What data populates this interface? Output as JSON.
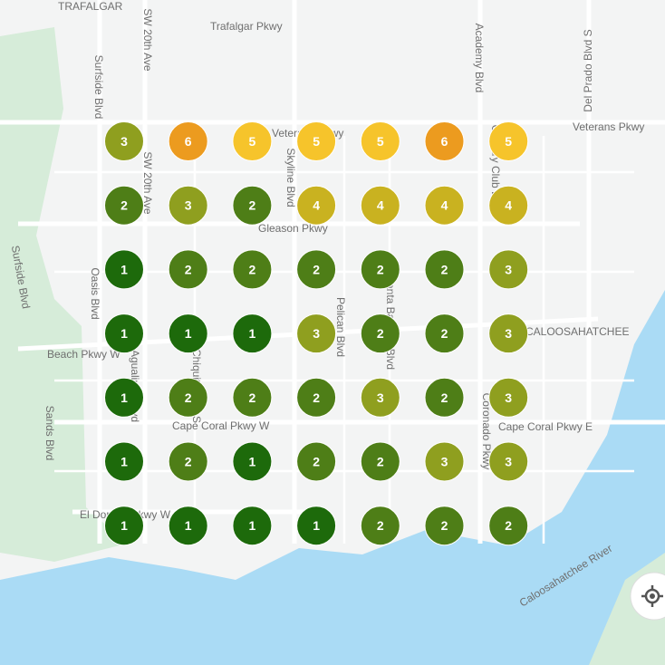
{
  "map": {
    "labels": [
      "TRAFALGAR",
      "Trafalgar Pkwy",
      "SW 20th Ave",
      "SW 20th Ave",
      "Surfside Blvd",
      "Surfside Blvd",
      "Academy Blvd",
      "Del Prado Blvd S",
      "Veterans Pkwy",
      "Veterans Pkwy",
      "Skyline Blvd",
      "Country Club Blvd",
      "Gleason Pkwy",
      "Oasis Blvd",
      "Chiquita Blvd S",
      "Pelican Blvd",
      "Santa Barbara Blvd",
      "Beach Pkwy W",
      "Agualinda Blvd",
      "CALOOSAHATCHEE",
      "Cape Coral Pkwy W",
      "Cape Coral Pkwy E",
      "Sands Blvd",
      "Coronado Pkwy",
      "El Dorado Pkwy W",
      "Caloosahatchee River"
    ],
    "rank_colors": [
      "#1d6a0b",
      "#4e7e17",
      "#8f9f1f",
      "#c9b220",
      "#f6c42b",
      "#ec9b1f"
    ],
    "grid": [
      [
        3,
        6,
        5,
        5,
        5,
        6,
        5
      ],
      [
        2,
        3,
        2,
        4,
        4,
        4,
        4
      ],
      [
        1,
        2,
        2,
        2,
        2,
        2,
        3
      ],
      [
        1,
        1,
        1,
        3,
        2,
        2,
        3
      ],
      [
        1,
        2,
        2,
        2,
        3,
        2,
        3
      ],
      [
        1,
        2,
        1,
        2,
        2,
        3,
        3
      ],
      [
        1,
        1,
        1,
        1,
        2,
        2,
        2
      ]
    ]
  }
}
